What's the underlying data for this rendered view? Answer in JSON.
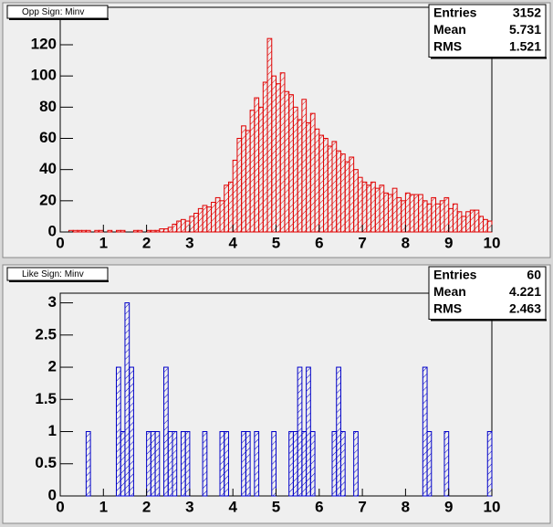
{
  "chart_data": [
    {
      "type": "histogram",
      "title": "Opp Sign: Minv",
      "color": "#e00000",
      "stats": [
        {
          "label": "Entries",
          "value": 3152
        },
        {
          "label": "Mean",
          "value": 5.731
        },
        {
          "label": "RMS",
          "value": 1.521
        }
      ],
      "bins": [
        0,
        0.1,
        0.2,
        0.3,
        0.4,
        0.5,
        0.6,
        0.7,
        0.8,
        0.9,
        1,
        1.1,
        1.2,
        1.3,
        1.4,
        1.5,
        1.6,
        1.7,
        1.8,
        1.9,
        2,
        2.1,
        2.2,
        2.3,
        2.4,
        2.5,
        2.6,
        2.7,
        2.8,
        2.9,
        3,
        3.1,
        3.2,
        3.3,
        3.4,
        3.5,
        3.6,
        3.7,
        3.8,
        3.9,
        4,
        4.1,
        4.2,
        4.3,
        4.4,
        4.5,
        4.6,
        4.7,
        4.8,
        4.9,
        5,
        5.1,
        5.2,
        5.3,
        5.4,
        5.5,
        5.6,
        5.7,
        5.8,
        5.9,
        6,
        6.1,
        6.2,
        6.3,
        6.4,
        6.5,
        6.6,
        6.7,
        6.8,
        6.9,
        7,
        7.1,
        7.2,
        7.3,
        7.4,
        7.5,
        7.6,
        7.7,
        7.8,
        7.9,
        8,
        8.1,
        8.2,
        8.3,
        8.4,
        8.5,
        8.6,
        8.7,
        8.8,
        8.9,
        9,
        9.1,
        9.2,
        9.3,
        9.4,
        9.5,
        9.6,
        9.7,
        9.8,
        9.9,
        10
      ],
      "values": [
        0,
        0,
        1,
        1,
        1,
        1,
        1,
        0,
        1,
        1,
        0,
        1,
        0,
        1,
        1,
        0,
        0,
        1,
        1,
        0,
        1,
        1,
        1,
        2,
        2,
        3,
        5,
        7,
        8,
        7,
        10,
        12,
        15,
        17,
        16,
        19,
        22,
        20,
        30,
        32,
        46,
        60,
        68,
        65,
        78,
        86,
        80,
        96,
        124,
        100,
        95,
        102,
        90,
        88,
        80,
        72,
        85,
        70,
        76,
        66,
        62,
        60,
        55,
        58,
        52,
        50,
        45,
        48,
        40,
        35,
        32,
        30,
        32,
        28,
        30,
        25,
        24,
        28,
        22,
        20,
        25,
        24,
        24,
        24,
        20,
        18,
        22,
        18,
        20,
        22,
        15,
        18,
        13,
        10,
        13,
        14,
        14,
        10,
        8,
        7
      ],
      "xlim": [
        0,
        10
      ],
      "xticks": [
        0,
        1,
        2,
        3,
        4,
        5,
        6,
        7,
        8,
        9,
        10
      ],
      "ylim": [
        0,
        144
      ],
      "yticks": [
        0,
        20,
        40,
        60,
        80,
        100,
        120
      ]
    },
    {
      "type": "histogram",
      "title": "Like Sign: Minv",
      "color": "#0000c8",
      "stats": [
        {
          "label": "Entries",
          "value": 60
        },
        {
          "label": "Mean",
          "value": 4.221
        },
        {
          "label": "RMS",
          "value": 2.463
        }
      ],
      "bins": [
        0,
        0.1,
        0.2,
        0.3,
        0.4,
        0.5,
        0.6,
        0.7,
        0.8,
        0.9,
        1,
        1.1,
        1.2,
        1.3,
        1.4,
        1.5,
        1.6,
        1.7,
        1.8,
        1.9,
        2,
        2.1,
        2.2,
        2.3,
        2.4,
        2.5,
        2.6,
        2.7,
        2.8,
        2.9,
        3,
        3.1,
        3.2,
        3.3,
        3.4,
        3.5,
        3.6,
        3.7,
        3.8,
        3.9,
        4,
        4.1,
        4.2,
        4.3,
        4.4,
        4.5,
        4.6,
        4.7,
        4.8,
        4.9,
        5,
        5.1,
        5.2,
        5.3,
        5.4,
        5.5,
        5.6,
        5.7,
        5.8,
        5.9,
        6,
        6.1,
        6.2,
        6.3,
        6.4,
        6.5,
        6.6,
        6.7,
        6.8,
        6.9,
        7,
        7.1,
        7.2,
        7.3,
        7.4,
        7.5,
        7.6,
        7.7,
        7.8,
        7.9,
        8,
        8.1,
        8.2,
        8.3,
        8.4,
        8.5,
        8.6,
        8.7,
        8.8,
        8.9,
        9,
        9.1,
        9.2,
        9.3,
        9.4,
        9.5,
        9.6,
        9.7,
        9.8,
        9.9,
        10
      ],
      "values": [
        0,
        0,
        0,
        0,
        0,
        0,
        1,
        0,
        0,
        0,
        0,
        0,
        0,
        2,
        1,
        3,
        2,
        0,
        0,
        0,
        1,
        1,
        1,
        0,
        2,
        1,
        1,
        0,
        1,
        1,
        0,
        0,
        0,
        1,
        0,
        0,
        0,
        1,
        1,
        0,
        0,
        0,
        1,
        1,
        0,
        1,
        0,
        0,
        0,
        1,
        0,
        0,
        0,
        1,
        1,
        2,
        1,
        2,
        1,
        0,
        0,
        0,
        0,
        1,
        2,
        1,
        0,
        0,
        1,
        0,
        0,
        0,
        0,
        0,
        0,
        0,
        0,
        0,
        0,
        0,
        0,
        0,
        0,
        0,
        2,
        1,
        0,
        0,
        0,
        1,
        0,
        0,
        0,
        0,
        0,
        0,
        0,
        0,
        0,
        1
      ],
      "xlim": [
        0,
        10
      ],
      "xticks": [
        0,
        1,
        2,
        3,
        4,
        5,
        6,
        7,
        8,
        9,
        10
      ],
      "ylim": [
        0,
        3.15
      ],
      "yticks": [
        0,
        0.5,
        1,
        1.5,
        2,
        2.5,
        3
      ]
    }
  ]
}
